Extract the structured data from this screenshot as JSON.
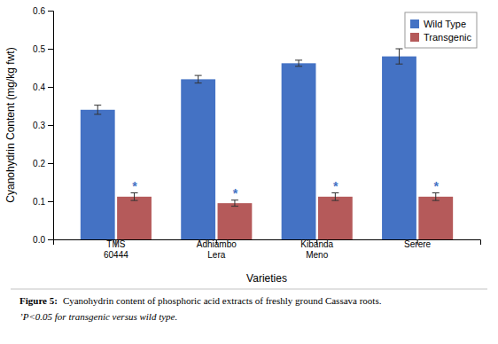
{
  "chart_data": {
    "type": "bar",
    "categories": [
      "TMS\n60444",
      "Adhiambo\nLera",
      "Kibanda\nMeno",
      "Serere"
    ],
    "series": [
      {
        "name": "Wild Type",
        "color": "#4472C4",
        "values": [
          0.34,
          0.42,
          0.462,
          0.48
        ],
        "errors": [
          0.012,
          0.01,
          0.008,
          0.02
        ]
      },
      {
        "name": "Transgenic",
        "color": "#B55A5A",
        "values": [
          0.112,
          0.095,
          0.112,
          0.112
        ],
        "errors": [
          0.01,
          0.008,
          0.01,
          0.01
        ]
      }
    ],
    "xlabel": "Varieties",
    "ylabel": "Cyanohydrin Content (mg/kg fwt)",
    "ylim": [
      0,
      0.6
    ],
    "yticks": [
      {
        "value": 0,
        "label": "0.0"
      },
      0.1,
      0.2,
      0.3,
      0.4,
      0.5,
      0.6
    ],
    "grid": false,
    "legend": "upper right",
    "annotations": [
      {
        "text": "*",
        "category": "TMS\n60444",
        "series": "Transgenic",
        "color": "#4472C4"
      },
      {
        "text": "*",
        "category": "Adhiambo\nLera",
        "series": "Transgenic",
        "color": "#4472C4"
      },
      {
        "text": "*",
        "category": "Kibanda\nMeno",
        "series": "Transgenic",
        "color": "#4472C4"
      },
      {
        "text": "*",
        "category": "Serere",
        "series": "Transgenic",
        "color": "#4472C4"
      }
    ],
    "caption": {
      "label": "Figure 5:",
      "text": "Cyanohydrin content of phosphoric acid extracts of freshly ground Cassava roots.",
      "note": "’P<0.05 for transgenic versus wild type."
    }
  }
}
